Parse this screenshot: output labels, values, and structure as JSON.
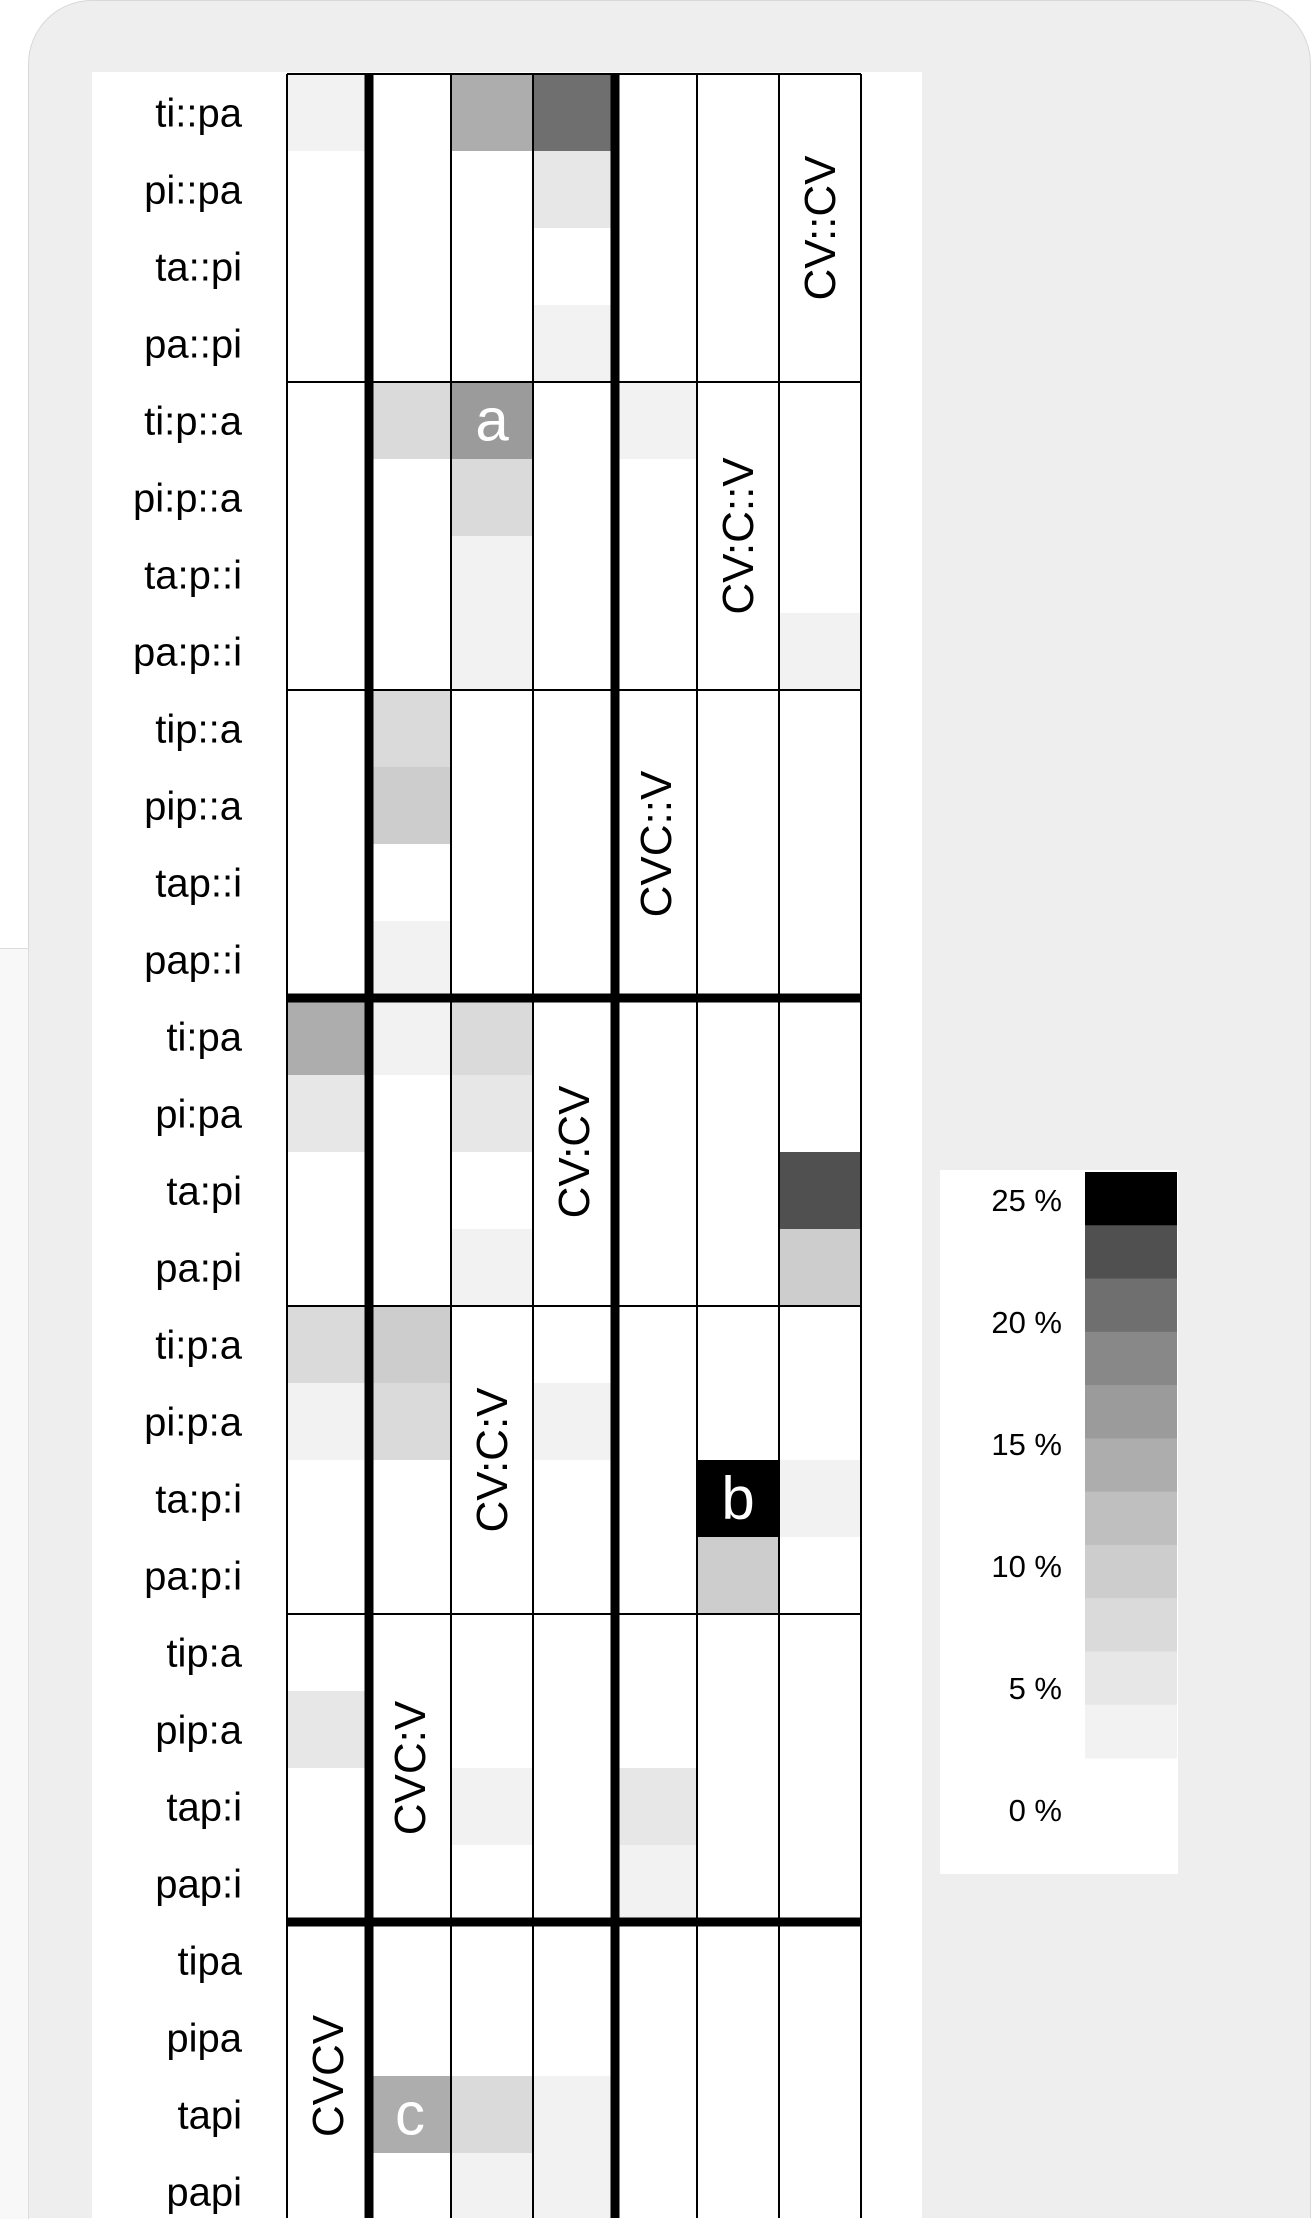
{
  "chart_data": {
    "type": "heatmap",
    "row_labels": [
      "ti::pa",
      "pi::pa",
      "ta::pi",
      "pa::pi",
      "ti:p::a",
      "pi:p::a",
      "ta:p::i",
      "pa:p::i",
      "tip::a",
      "pip::a",
      "tap::i",
      "pap::i",
      "ti:pa",
      "pi:pa",
      "ta:pi",
      "pa:pi",
      "ti:p:a",
      "pi:p:a",
      "ta:p:i",
      "pa:p:i",
      "tip:a",
      "pip:a",
      "tap:i",
      "pap:i",
      "tipa",
      "pipa",
      "tapi",
      "papi"
    ],
    "n_columns": 7,
    "values": [
      [
        2,
        1,
        13,
        20,
        0,
        1,
        0
      ],
      [
        0,
        0,
        1,
        4,
        0,
        1,
        0
      ],
      [
        0,
        0,
        0,
        0,
        0,
        0,
        0
      ],
      [
        0,
        1,
        1,
        2,
        0,
        1,
        0
      ],
      [
        1,
        6,
        17,
        1,
        2,
        0,
        0
      ],
      [
        0,
        1,
        6,
        0,
        0,
        0,
        0
      ],
      [
        0,
        0,
        2,
        0,
        0,
        0,
        0
      ],
      [
        0,
        0,
        2,
        1,
        0,
        0,
        2
      ],
      [
        0,
        6,
        0,
        0,
        0,
        0,
        0
      ],
      [
        1,
        8,
        1,
        0,
        0,
        0,
        0
      ],
      [
        0,
        1,
        0,
        0,
        0,
        0,
        0
      ],
      [
        0,
        2,
        0,
        0,
        0,
        0,
        0
      ],
      [
        14,
        3,
        6,
        0,
        0,
        0,
        0
      ],
      [
        4,
        0,
        5,
        0,
        0,
        0,
        0
      ],
      [
        0,
        0,
        1,
        0,
        0,
        1,
        23
      ],
      [
        1,
        0,
        2,
        0,
        0,
        1,
        8
      ],
      [
        7,
        10,
        0,
        1,
        1,
        0,
        0
      ],
      [
        2,
        6,
        0,
        3,
        0,
        0,
        0
      ],
      [
        0,
        1,
        0,
        0,
        0,
        25,
        2
      ],
      [
        0,
        0,
        0,
        1,
        0,
        10,
        1
      ],
      [
        1,
        0,
        1,
        0,
        0,
        0,
        0
      ],
      [
        5,
        0,
        1,
        0,
        0,
        0,
        0
      ],
      [
        0,
        0,
        3,
        0,
        5,
        1,
        0
      ],
      [
        1,
        0,
        1,
        0,
        3,
        0,
        0
      ],
      [
        0,
        0,
        0,
        0,
        0,
        0,
        0
      ],
      [
        0,
        0,
        0,
        0,
        0,
        0,
        0
      ],
      [
        0,
        14,
        7,
        3,
        0,
        1,
        0
      ],
      [
        0,
        1,
        2,
        2,
        0,
        0,
        0
      ]
    ],
    "diagonal_labels": [
      {
        "text": "CV::CV",
        "column": 6,
        "rows": [
          0,
          3
        ]
      },
      {
        "text": "CV:C::V",
        "column": 5,
        "rows": [
          4,
          7
        ]
      },
      {
        "text": "CVC::V",
        "column": 4,
        "rows": [
          8,
          11
        ]
      },
      {
        "text": "CV:CV",
        "column": 3,
        "rows": [
          12,
          15
        ]
      },
      {
        "text": "CV:C:V",
        "column": 2,
        "rows": [
          16,
          19
        ]
      },
      {
        "text": "CVC:V",
        "column": 1,
        "rows": [
          20,
          23
        ]
      },
      {
        "text": "CVCV",
        "column": 0,
        "rows": [
          24,
          27
        ]
      }
    ],
    "cell_annotations": [
      {
        "text": "a",
        "row": 4,
        "column": 2
      },
      {
        "text": "b",
        "row": 18,
        "column": 5
      },
      {
        "text": "c",
        "row": 26,
        "column": 1
      }
    ],
    "color_scale": {
      "min": 0,
      "max": 25,
      "colors": [
        "#ffffff",
        "#f2f2f2",
        "#e7e7e7",
        "#dadada",
        "#cdcdcd",
        "#bfbfbf",
        "#adadad",
        "#9b9b9b",
        "#888888",
        "#6f6f6f",
        "#505050",
        "#000000"
      ],
      "tick_labels": [
        {
          "text": "25 %",
          "value": 25
        },
        {
          "text": "20 %",
          "value": 20
        },
        {
          "text": "15 %",
          "value": 15
        },
        {
          "text": "10 %",
          "value": 10
        },
        {
          "text": "5 %",
          "value": 5
        },
        {
          "text": "0 %",
          "value": 0
        }
      ]
    }
  }
}
